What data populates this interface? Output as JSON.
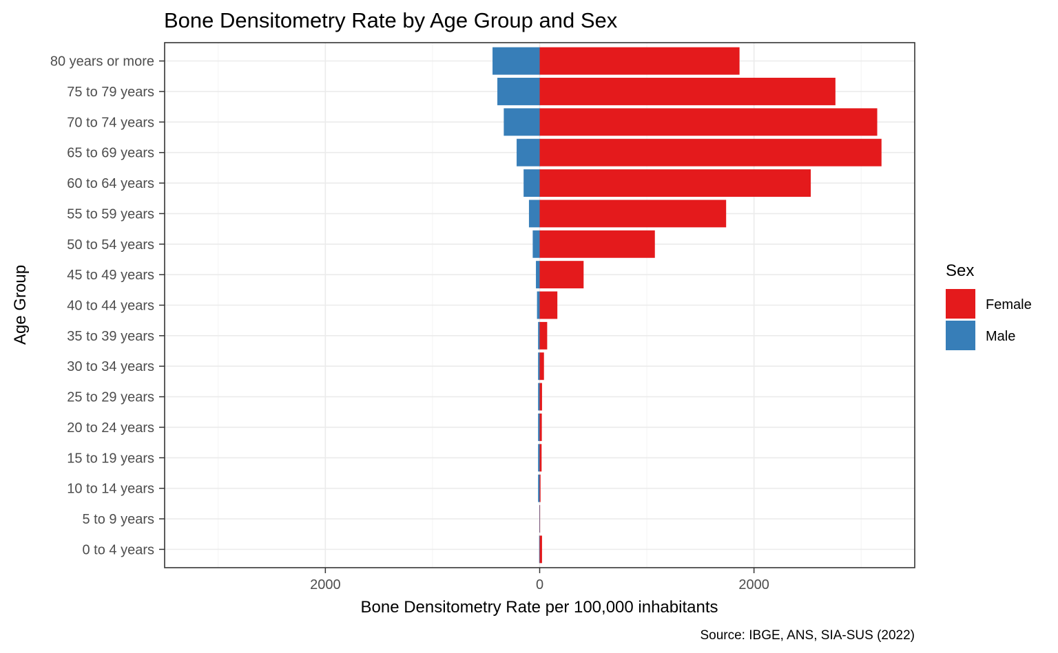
{
  "chart_data": {
    "type": "bar",
    "orientation": "horizontal",
    "layout": "diverging",
    "title": "Bone Densitometry Rate by Age Group and Sex",
    "xlabel": "Bone Densitometry Rate per 100,000 inhabitants",
    "ylabel": "Age Group",
    "caption": "Source: IBGE, ANS, SIA-SUS (2022)",
    "xlim": [
      -3500,
      3500
    ],
    "x_ticks": [
      -2000,
      0,
      2000
    ],
    "x_tick_labels": [
      "2000",
      "0",
      "2000"
    ],
    "categories": [
      "0 to 4 years",
      "5 to 9 years",
      "10 to 14 years",
      "15 to 19 years",
      "20 to 24 years",
      "25 to 29 years",
      "30 to 34 years",
      "35 to 39 years",
      "40 to 44 years",
      "45 to 49 years",
      "50 to 54 years",
      "55 to 59 years",
      "60 to 64 years",
      "65 to 69 years",
      "70 to 74 years",
      "75 to 79 years",
      "80 years or more"
    ],
    "legend": {
      "title": "Sex",
      "position": "right"
    },
    "series": [
      {
        "name": "Female",
        "color": "#e41a1c",
        "direction": "right",
        "values": [
          22,
          3,
          8,
          18,
          20,
          22,
          40,
          70,
          165,
          410,
          1075,
          1740,
          2530,
          3190,
          3150,
          2760,
          1865
        ]
      },
      {
        "name": "Male",
        "color": "#377eb8",
        "direction": "left",
        "values": [
          5,
          3,
          15,
          15,
          15,
          15,
          15,
          15,
          25,
          35,
          65,
          100,
          150,
          215,
          335,
          395,
          440
        ]
      }
    ],
    "grid": true
  }
}
